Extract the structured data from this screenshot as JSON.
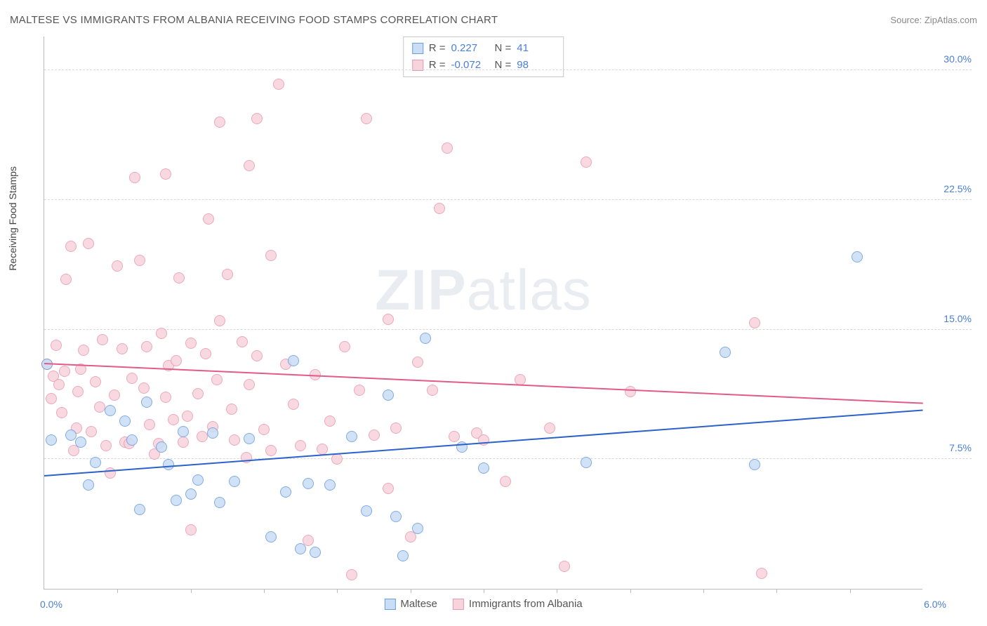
{
  "title": "MALTESE VS IMMIGRANTS FROM ALBANIA RECEIVING FOOD STAMPS CORRELATION CHART",
  "source_label": "Source:",
  "source_name": "ZipAtlas.com",
  "watermark": {
    "part1": "ZIP",
    "part2": "atlas"
  },
  "chart": {
    "type": "scatter",
    "y_axis_label": "Receiving Food Stamps",
    "xlim": [
      0.0,
      6.0
    ],
    "ylim": [
      0.0,
      32.0
    ],
    "x_tick_positions": [
      0.5,
      1.0,
      1.5,
      2.0,
      2.5,
      3.0,
      3.5,
      4.0,
      4.5,
      5.0,
      5.5
    ],
    "x_min_label": "0.0%",
    "x_max_label": "6.0%",
    "y_gridlines": [
      7.5,
      15.0,
      22.5,
      30.0
    ],
    "y_grid_labels": [
      "7.5%",
      "15.0%",
      "22.5%",
      "30.0%"
    ],
    "grid_color": "#d8d8d8",
    "axis_color": "#bbbbbb",
    "tick_label_color": "#4a7fd8",
    "background_color": "#ffffff",
    "marker_radius": 8,
    "marker_border_width": 1.2,
    "series": [
      {
        "key": "maltese",
        "label": "Maltese",
        "fill": "#c9ddf5",
        "stroke": "#6b9de0",
        "trend_color": "#2b62c9",
        "R": "0.227",
        "N": "41",
        "trend": {
          "y_at_xmin": 6.5,
          "y_at_xmax": 10.3
        },
        "points": [
          [
            0.02,
            13.0
          ],
          [
            0.05,
            8.6
          ],
          [
            0.18,
            8.9
          ],
          [
            0.25,
            8.5
          ],
          [
            0.3,
            6.0
          ],
          [
            0.35,
            7.3
          ],
          [
            0.45,
            10.3
          ],
          [
            0.55,
            9.7
          ],
          [
            0.6,
            8.6
          ],
          [
            0.65,
            4.6
          ],
          [
            0.7,
            10.8
          ],
          [
            0.8,
            8.2
          ],
          [
            0.85,
            7.2
          ],
          [
            0.9,
            5.1
          ],
          [
            0.95,
            9.1
          ],
          [
            1.0,
            5.5
          ],
          [
            1.05,
            6.3
          ],
          [
            1.15,
            9.0
          ],
          [
            1.2,
            5.0
          ],
          [
            1.3,
            6.2
          ],
          [
            1.4,
            8.7
          ],
          [
            1.55,
            3.0
          ],
          [
            1.65,
            5.6
          ],
          [
            1.7,
            13.2
          ],
          [
            1.75,
            2.3
          ],
          [
            1.8,
            6.1
          ],
          [
            1.85,
            2.1
          ],
          [
            1.95,
            6.0
          ],
          [
            2.1,
            8.8
          ],
          [
            2.2,
            4.5
          ],
          [
            2.35,
            11.2
          ],
          [
            2.4,
            4.2
          ],
          [
            2.45,
            1.9
          ],
          [
            2.55,
            3.5
          ],
          [
            2.6,
            14.5
          ],
          [
            2.85,
            8.2
          ],
          [
            3.0,
            7.0
          ],
          [
            3.7,
            7.3
          ],
          [
            4.65,
            13.7
          ],
          [
            4.85,
            7.2
          ],
          [
            5.55,
            19.2
          ]
        ]
      },
      {
        "key": "albania",
        "label": "Immigrants from Albania",
        "fill": "#f7d3dc",
        "stroke": "#e89ab0",
        "trend_color": "#e15a8a",
        "R": "-0.072",
        "N": "98",
        "trend": {
          "y_at_xmin": 13.0,
          "y_at_xmax": 10.7
        },
        "points": [
          [
            0.02,
            13.0
          ],
          [
            0.05,
            11.0
          ],
          [
            0.06,
            12.3
          ],
          [
            0.08,
            14.1
          ],
          [
            0.1,
            11.8
          ],
          [
            0.12,
            10.2
          ],
          [
            0.14,
            12.6
          ],
          [
            0.15,
            17.9
          ],
          [
            0.18,
            19.8
          ],
          [
            0.2,
            8.0
          ],
          [
            0.22,
            9.3
          ],
          [
            0.23,
            11.4
          ],
          [
            0.25,
            12.7
          ],
          [
            0.27,
            13.8
          ],
          [
            0.3,
            20.0
          ],
          [
            0.32,
            9.1
          ],
          [
            0.35,
            12.0
          ],
          [
            0.38,
            10.5
          ],
          [
            0.4,
            14.4
          ],
          [
            0.42,
            8.3
          ],
          [
            0.45,
            6.7
          ],
          [
            0.48,
            11.2
          ],
          [
            0.5,
            18.7
          ],
          [
            0.53,
            13.9
          ],
          [
            0.55,
            8.5
          ],
          [
            0.58,
            8.4
          ],
          [
            0.6,
            12.2
          ],
          [
            0.62,
            23.8
          ],
          [
            0.65,
            19.0
          ],
          [
            0.68,
            11.6
          ],
          [
            0.7,
            14.0
          ],
          [
            0.72,
            9.5
          ],
          [
            0.75,
            7.8
          ],
          [
            0.78,
            8.4
          ],
          [
            0.8,
            14.8
          ],
          [
            0.83,
            11.1
          ],
          [
            0.83,
            24.0
          ],
          [
            0.85,
            12.9
          ],
          [
            0.88,
            9.8
          ],
          [
            0.9,
            13.2
          ],
          [
            0.92,
            18.0
          ],
          [
            0.95,
            8.5
          ],
          [
            0.98,
            10.0
          ],
          [
            1.0,
            14.2
          ],
          [
            1.0,
            3.4
          ],
          [
            1.05,
            11.3
          ],
          [
            1.08,
            8.8
          ],
          [
            1.1,
            13.6
          ],
          [
            1.12,
            21.4
          ],
          [
            1.15,
            9.4
          ],
          [
            1.18,
            12.1
          ],
          [
            1.2,
            15.5
          ],
          [
            1.2,
            27.0
          ],
          [
            1.25,
            18.2
          ],
          [
            1.28,
            10.4
          ],
          [
            1.3,
            8.6
          ],
          [
            1.35,
            14.3
          ],
          [
            1.38,
            7.6
          ],
          [
            1.4,
            11.8
          ],
          [
            1.4,
            24.5
          ],
          [
            1.45,
            13.5
          ],
          [
            1.45,
            27.2
          ],
          [
            1.5,
            9.2
          ],
          [
            1.55,
            19.3
          ],
          [
            1.55,
            8.0
          ],
          [
            1.6,
            29.2
          ],
          [
            1.65,
            13.0
          ],
          [
            1.7,
            10.7
          ],
          [
            1.75,
            8.3
          ],
          [
            1.8,
            2.8
          ],
          [
            1.85,
            12.4
          ],
          [
            1.9,
            8.1
          ],
          [
            1.95,
            9.7
          ],
          [
            2.0,
            7.5
          ],
          [
            2.05,
            14.0
          ],
          [
            2.1,
            0.8
          ],
          [
            2.15,
            11.5
          ],
          [
            2.2,
            27.2
          ],
          [
            2.25,
            8.9
          ],
          [
            2.35,
            15.6
          ],
          [
            2.35,
            5.8
          ],
          [
            2.4,
            9.3
          ],
          [
            2.5,
            3.0
          ],
          [
            2.55,
            13.1
          ],
          [
            2.65,
            11.5
          ],
          [
            2.7,
            22.0
          ],
          [
            2.75,
            25.5
          ],
          [
            2.8,
            8.8
          ],
          [
            2.95,
            9.0
          ],
          [
            3.0,
            8.6
          ],
          [
            3.15,
            6.2
          ],
          [
            3.25,
            12.1
          ],
          [
            3.45,
            9.3
          ],
          [
            3.55,
            1.3
          ],
          [
            3.7,
            24.7
          ],
          [
            4.0,
            11.4
          ],
          [
            4.85,
            15.4
          ],
          [
            4.9,
            0.9
          ]
        ]
      }
    ],
    "correlation_box": {
      "r_label": "R =",
      "n_label": "N ="
    }
  }
}
